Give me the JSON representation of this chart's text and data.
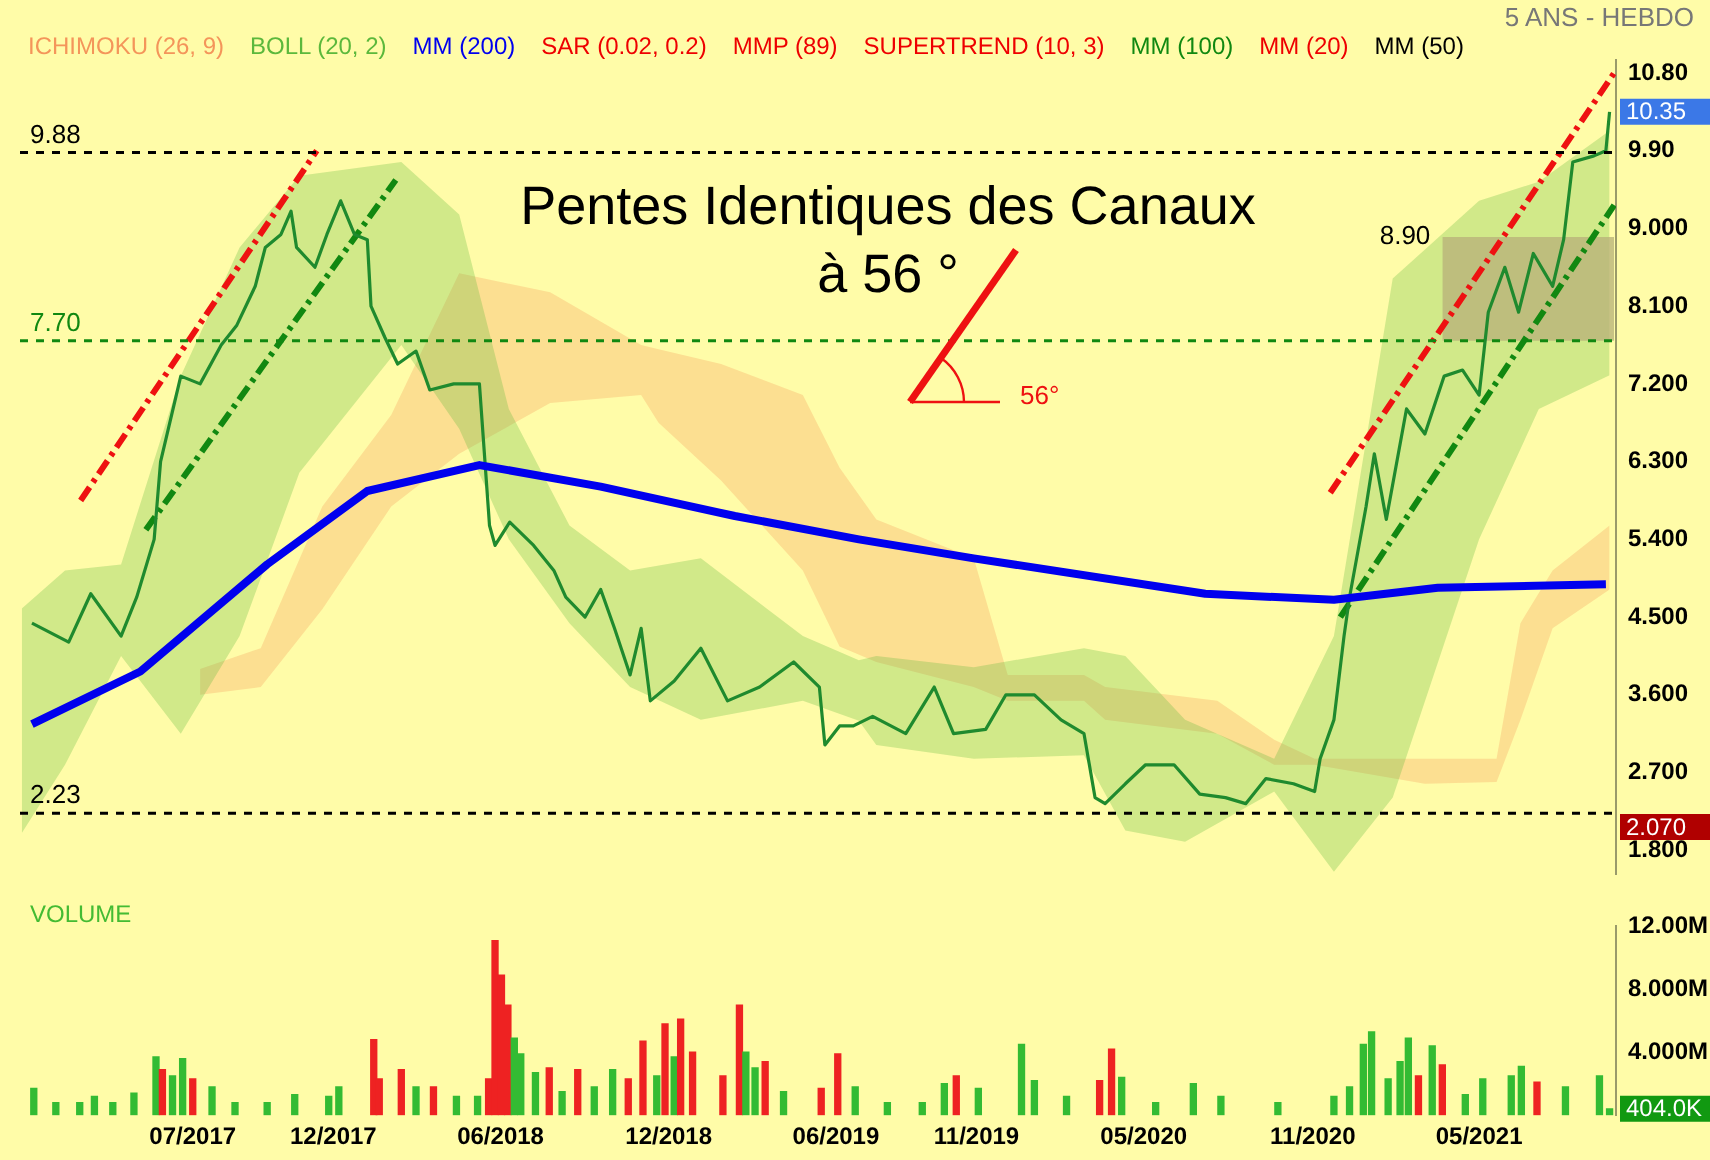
{
  "chart_data": [
    {
      "type": "line",
      "title": "Pentes Identiques des Canaux à 56 °",
      "subtitle": "5 ANS - HEBDO",
      "legend": "top left",
      "tick_labels": "y",
      "xlim": [
        "2016-12-25",
        "2021-09-27"
      ],
      "ylim": [
        1.53,
        10.95
      ],
      "yticks": [
        {
          "value": 1.8,
          "label": "1.800"
        },
        {
          "value": 2.7,
          "label": "2.700"
        },
        {
          "value": 3.6,
          "label": "3.600"
        },
        {
          "value": 4.5,
          "label": "4.500"
        },
        {
          "value": 5.4,
          "label": "5.400"
        },
        {
          "value": 6.3,
          "label": "6.300"
        },
        {
          "value": 7.2,
          "label": "7.200"
        },
        {
          "value": 8.1,
          "label": "8.100"
        },
        {
          "value": 9,
          "label": "9.000"
        },
        {
          "value": 9.9,
          "label": "9.90"
        },
        {
          "value": 10.8,
          "label": "10.80"
        }
      ],
      "series": [
        {
          "name": "ICHIMOKU (26, 9)",
          "type": "area",
          "color": "#f4955a",
          "values": [
            null,
            null,
            null,
            null,
            null,
            null,
            null,
            null,
            null,
            null,
            null,
            null,
            null,
            null,
            null,
            null,
            null,
            null,
            null,
            null,
            null,
            null,
            null,
            null
          ],
          "x": [
            "2017-07-09",
            "2017-09-13",
            "2017-11-19",
            "2018-02-02",
            "2018-04-17",
            "2018-07-25",
            "2018-11-01",
            "2018-11-20",
            "2019-01-27",
            "2019-04-26",
            "2019-06-05",
            "2019-07-15",
            "2019-10-29",
            "2019-12-05",
            "2020-02-26",
            "2020-03-20",
            "2020-07-20",
            "2020-09-20",
            "2020-11-03",
            "2021-03-03",
            "2021-05-20",
            "2021-06-15",
            "2021-07-20",
            "2021-09-20"
          ],
          "lower": [
            3.6,
            3.69,
            4.59,
            5.78,
            6.39,
            6.98,
            7.07,
            6.75,
            6.08,
            5.04,
            4.16,
            3.98,
            3.69,
            3.53,
            3.53,
            3.31,
            3.15,
            2.79,
            2.79,
            2.57,
            2.59,
            3.31,
            4.37,
            4.82
          ],
          "upper": [
            3.9,
            4.14,
            5.78,
            6.84,
            8.48,
            8.26,
            7.65,
            7.6,
            7.43,
            7.07,
            6.23,
            5.63,
            5.18,
            3.83,
            3.83,
            3.69,
            3.53,
            3.08,
            2.86,
            2.86,
            2.86,
            4.43,
            5.04,
            5.56
          ]
        },
        {
          "name": "BOLL (20, 2)",
          "type": "area",
          "color": "#5cb83c",
          "values": [
            null,
            null,
            null,
            null,
            null,
            null,
            null,
            null,
            null,
            null,
            null,
            null,
            null,
            null,
            null,
            null,
            null,
            null,
            null,
            null,
            null,
            null,
            null,
            null,
            null
          ],
          "x": [
            "2016-12-27",
            "2017-02-12",
            "2017-04-14",
            "2017-06-18",
            "2017-08-21",
            "2017-10-25",
            "2018-02-13",
            "2018-04-17",
            "2018-06-10",
            "2018-08-15",
            "2018-10-20",
            "2019-01-05",
            "2019-04-26",
            "2019-06-26",
            "2019-07-15",
            "2019-10-29",
            "2020-02-26",
            "2020-04-11",
            "2020-06-15",
            "2020-09-20",
            "2020-11-24",
            "2021-01-27",
            "2021-05-01",
            "2021-07-05",
            "2021-09-20"
          ],
          "lower": [
            2.0,
            2.79,
            4.05,
            3.15,
            4.28,
            6.17,
            7.65,
            6.68,
            5.4,
            4.43,
            3.69,
            3.31,
            3.53,
            3.3,
            3.02,
            2.86,
            2.9,
            2.03,
            1.9,
            2.48,
            1.55,
            2.41,
            5.4,
            6.91,
            7.3
          ],
          "upper": [
            4.6,
            5.04,
            5.11,
            7.29,
            8.78,
            9.61,
            9.77,
            9.16,
            6.91,
            5.56,
            5.04,
            5.18,
            4.28,
            4.0,
            4.05,
            3.92,
            4.14,
            4.05,
            3.31,
            2.86,
            4.28,
            8.42,
            9.32,
            9.54,
            10.13
          ]
        },
        {
          "name": "MM (200)",
          "type": "line",
          "color": "#0000ee",
          "x": [
            "2017-01-07",
            "2017-05-05",
            "2017-09-20",
            "2018-01-07",
            "2018-05-09",
            "2018-09-18",
            "2019-02-11",
            "2019-06-26",
            "2019-10-29",
            "2020-07-07",
            "2020-11-24",
            "2021-03-17",
            "2021-09-16"
          ],
          "values": [
            3.26,
            3.87,
            5.11,
            5.96,
            6.26,
            6.01,
            5.67,
            5.4,
            5.18,
            4.77,
            4.7,
            4.84,
            4.88
          ]
        },
        {
          "name": "SAR (0.02, 0.2)",
          "color": "#ee0000"
        },
        {
          "name": "MMP (89)",
          "color": "#ee0000"
        },
        {
          "name": "SUPERTREND (10, 3)",
          "color": "#ee0000"
        },
        {
          "name": "MM (100)",
          "color": "#118811"
        },
        {
          "name": "MM (20)",
          "color": "#ee0000"
        },
        {
          "name": "MM (50)",
          "color": "#000000"
        },
        {
          "color": "#1f8a2e",
          "x": [
            "2017-01-07",
            "2017-02-16",
            "2017-03-12",
            "2017-04-14",
            "2017-05-01",
            "2017-05-20",
            "2017-05-27",
            "2017-06-18",
            "2017-07-09",
            "2017-08-01",
            "2017-08-18",
            "2017-09-07",
            "2017-09-18",
            "2017-10-05",
            "2017-10-16",
            "2017-10-22",
            "2017-11-11",
            "2017-11-24",
            "2017-12-09",
            "2017-12-24",
            "2018-01-07",
            "2018-01-11",
            "2018-01-26",
            "2018-02-09",
            "2018-03-01",
            "2018-03-16",
            "2018-04-11",
            "2018-05-09",
            "2018-05-20",
            "2018-05-26",
            "2018-06-11",
            "2018-07-07",
            "2018-07-29",
            "2018-08-11",
            "2018-09-01",
            "2018-09-18",
            "2018-10-03",
            "2018-10-20",
            "2018-11-01",
            "2018-11-11",
            "2018-12-07",
            "2019-01-05",
            "2019-02-03",
            "2019-03-10",
            "2019-04-16",
            "2019-05-14",
            "2019-05-20",
            "2019-06-05",
            "2019-06-20",
            "2019-07-11",
            "2019-08-16",
            "2019-09-16",
            "2019-10-07",
            "2019-11-11",
            "2019-12-03",
            "2020-01-03",
            "2020-02-01",
            "2020-02-26",
            "2020-03-09",
            "2020-03-20",
            "2020-04-11",
            "2020-05-03",
            "2020-06-03",
            "2020-07-01",
            "2020-07-29",
            "2020-08-20",
            "2020-09-11",
            "2020-10-11",
            "2020-11-03",
            "2020-11-09",
            "2020-11-24",
            "2020-12-05",
            "2020-12-11",
            "2020-12-29",
            "2021-01-07",
            "2021-01-20",
            "2021-02-11",
            "2021-03-03",
            "2021-03-24",
            "2021-04-13",
            "2021-05-01",
            "2021-05-11",
            "2021-05-29",
            "2021-06-13",
            "2021-06-29",
            "2021-07-20",
            "2021-08-01",
            "2021-08-11",
            "2021-09-03",
            "2021-09-16",
            "2021-09-20"
          ],
          "values": [
            4.43,
            4.21,
            4.77,
            4.28,
            4.73,
            5.4,
            6.3,
            7.29,
            7.2,
            7.65,
            7.88,
            8.33,
            8.78,
            8.93,
            9.2,
            8.78,
            8.55,
            8.93,
            9.32,
            8.93,
            8.87,
            8.1,
            7.74,
            7.43,
            7.58,
            7.13,
            7.2,
            7.2,
            5.56,
            5.33,
            5.6,
            5.33,
            5.04,
            4.73,
            4.5,
            4.82,
            4.37,
            3.83,
            4.37,
            3.53,
            3.76,
            4.14,
            3.53,
            3.69,
            3.98,
            3.69,
            3.02,
            3.24,
            3.24,
            3.35,
            3.15,
            3.69,
            3.15,
            3.2,
            3.6,
            3.6,
            3.31,
            3.15,
            2.41,
            2.34,
            2.57,
            2.79,
            2.79,
            2.45,
            2.41,
            2.34,
            2.63,
            2.57,
            2.48,
            2.86,
            3.31,
            4.28,
            4.73,
            5.78,
            6.39,
            5.63,
            6.91,
            6.62,
            7.29,
            7.36,
            7.07,
            8.03,
            8.55,
            8.03,
            8.71,
            8.33,
            8.87,
            9.77,
            9.84,
            9.9,
            10.35
          ]
        },
        {
          "color": "#ee1111",
          "line_style": "dashed",
          "x": [
            "2017-03-01",
            "2017-11-13"
          ],
          "values": [
            5.85,
            9.9
          ]
        },
        {
          "color": "#118811",
          "line_style": "dashed",
          "x": [
            "2017-05-11",
            "2018-02-07"
          ],
          "values": [
            5.51,
            9.56
          ]
        },
        {
          "color": "#ee1111",
          "line_style": "dashed",
          "x": [
            "2020-11-20",
            "2021-09-25"
          ],
          "values": [
            5.94,
            10.8
          ]
        },
        {
          "color": "#118811",
          "line_style": "dashed",
          "x": [
            "2020-12-01",
            "2021-09-25"
          ],
          "values": [
            4.5,
            9.27
          ]
        },
        {
          "type": "area",
          "color": "#b9b27a",
          "x": [
            "2021-03-22",
            "2021-09-25"
          ],
          "values": [
            null,
            null
          ],
          "lower": [
            7.7,
            7.7
          ],
          "upper": [
            8.9,
            8.9
          ]
        }
      ],
      "ref_lines": [
        {
          "axis": "y",
          "value": 9.88,
          "label": "9.88",
          "color": "#000000",
          "line_style": "dashed"
        },
        {
          "axis": "y",
          "value": 2.23,
          "label": "2.23",
          "color": "#000000",
          "line_style": "dashed"
        },
        {
          "axis": "y",
          "value": 7.7,
          "label": "7.70",
          "color": "#118811",
          "line_style": "dashed"
        }
      ],
      "annotations": [
        "56°",
        {
          "text": "8.90",
          "x": "2021-03-22",
          "y": 8.9
        },
        "10.35",
        "2.070"
      ]
    },
    {
      "type": "bar",
      "title": "VOLUME",
      "xlim": [
        "2016-12-25",
        "2021-09-27"
      ],
      "ylim": [
        0,
        12
      ],
      "yticks": [
        {
          "value": 4,
          "label": "4.000M"
        },
        {
          "value": 8,
          "label": "8.000M"
        },
        {
          "value": 12,
          "label": "12.00M"
        }
      ],
      "xticks": [
        {
          "value": "2017-07-01",
          "label": "07/2017"
        },
        {
          "value": "2017-12-01",
          "label": "12/2017"
        },
        {
          "value": "2018-06-01",
          "label": "06/2018"
        },
        {
          "value": "2018-12-01",
          "label": "12/2018"
        },
        {
          "value": "2019-06-01",
          "label": "06/2019"
        },
        {
          "value": "2019-11-01",
          "label": "11/2019"
        },
        {
          "value": "2020-05-01",
          "label": "05/2020"
        },
        {
          "value": "2020-11-01",
          "label": "11/2020"
        },
        {
          "value": "2021-05-01",
          "label": "05/2021"
        }
      ],
      "x": [
        "2017-01-09",
        "2017-02-02",
        "2017-02-28",
        "2017-03-16",
        "2017-04-05",
        "2017-04-28",
        "2017-05-22",
        "2017-05-29",
        "2017-06-09",
        "2017-06-20",
        "2017-07-01",
        "2017-07-22",
        "2017-08-16",
        "2017-09-20",
        "2017-10-20",
        "2017-11-26",
        "2017-12-07",
        "2018-01-14",
        "2018-01-20",
        "2018-02-13",
        "2018-03-01",
        "2018-03-20",
        "2018-04-14",
        "2018-05-07",
        "2018-05-19",
        "2018-05-26",
        "2018-06-02",
        "2018-06-09",
        "2018-06-16",
        "2018-06-23",
        "2018-07-09",
        "2018-07-24",
        "2018-08-07",
        "2018-08-24",
        "2018-09-11",
        "2018-10-01",
        "2018-10-18",
        "2018-11-03",
        "2018-11-18",
        "2018-11-27",
        "2018-12-07",
        "2018-12-14",
        "2018-12-27",
        "2019-01-29",
        "2019-02-16",
        "2019-02-23",
        "2019-03-05",
        "2019-03-16",
        "2019-04-05",
        "2019-05-16",
        "2019-06-03",
        "2019-06-22",
        "2019-07-27",
        "2019-09-03",
        "2019-09-27",
        "2019-10-10",
        "2019-11-03",
        "2019-12-20",
        "2020-01-03",
        "2020-02-07",
        "2020-03-14",
        "2020-03-27",
        "2020-04-07",
        "2020-05-14",
        "2020-06-24",
        "2020-07-24",
        "2020-09-24",
        "2020-11-24",
        "2020-12-11",
        "2020-12-26",
        "2021-01-04",
        "2021-01-22",
        "2021-02-04",
        "2021-02-13",
        "2021-02-24",
        "2021-03-11",
        "2021-03-22",
        "2021-04-16",
        "2021-05-05",
        "2021-06-05",
        "2021-06-16",
        "2021-07-03",
        "2021-08-03",
        "2021-09-09",
        "2021-09-20"
      ],
      "values": [
        1.7,
        0.8,
        0.8,
        1.2,
        0.8,
        1.4,
        3.7,
        2.9,
        2.5,
        3.6,
        2.3,
        1.8,
        0.8,
        0.8,
        1.3,
        1.2,
        1.8,
        4.8,
        2.3,
        2.9,
        1.8,
        1.8,
        1.2,
        1.2,
        2.3,
        11.1,
        8.9,
        7.0,
        4.9,
        3.9,
        2.7,
        3.0,
        1.5,
        2.9,
        1.8,
        2.9,
        2.3,
        4.7,
        2.5,
        5.8,
        3.7,
        6.1,
        4.0,
        2.5,
        7.0,
        4.0,
        3.0,
        3.4,
        1.5,
        1.7,
        3.9,
        1.8,
        0.8,
        0.8,
        2.0,
        2.5,
        1.7,
        4.5,
        2.2,
        1.2,
        2.2,
        4.2,
        2.4,
        0.8,
        2.0,
        1.2,
        0.8,
        1.2,
        1.8,
        4.5,
        5.3,
        2.3,
        3.4,
        4.9,
        2.5,
        4.4,
        3.2,
        1.3,
        2.3,
        2.5,
        3.1,
        2.1,
        1.8,
        2.5,
        0.404
      ],
      "colors": [
        "#33bb33",
        "#33bb33",
        "#33bb33",
        "#33bb33",
        "#33bb33",
        "#33bb33",
        "#33bb33",
        "#ee2222",
        "#33bb33",
        "#33bb33",
        "#ee2222",
        "#33bb33",
        "#33bb33",
        "#33bb33",
        "#33bb33",
        "#33bb33",
        "#33bb33",
        "#ee2222",
        "#ee2222",
        "#ee2222",
        "#33bb33",
        "#ee2222",
        "#33bb33",
        "#33bb33",
        "#ee2222",
        "#ee2222",
        "#ee2222",
        "#ee2222",
        "#33bb33",
        "#33bb33",
        "#33bb33",
        "#ee2222",
        "#33bb33",
        "#ee2222",
        "#33bb33",
        "#33bb33",
        "#ee2222",
        "#ee2222",
        "#33bb33",
        "#ee2222",
        "#33bb33",
        "#ee2222",
        "#ee2222",
        "#ee2222",
        "#ee2222",
        "#33bb33",
        "#33bb33",
        "#ee2222",
        "#33bb33",
        "#ee2222",
        "#ee2222",
        "#33bb33",
        "#33bb33",
        "#33bb33",
        "#33bb33",
        "#ee2222",
        "#33bb33",
        "#33bb33",
        "#33bb33",
        "#33bb33",
        "#ee2222",
        "#ee2222",
        "#33bb33",
        "#33bb33",
        "#33bb33",
        "#33bb33",
        "#33bb33",
        "#33bb33",
        "#33bb33",
        "#33bb33",
        "#33bb33",
        "#33bb33",
        "#33bb33",
        "#33bb33",
        "#ee2222",
        "#33bb33",
        "#ee2222",
        "#33bb33",
        "#33bb33",
        "#33bb33",
        "#33bb33",
        "#ee2222",
        "#33bb33",
        "#33bb33",
        "#33bb33"
      ],
      "annotations": [
        "404.0K"
      ]
    }
  ]
}
